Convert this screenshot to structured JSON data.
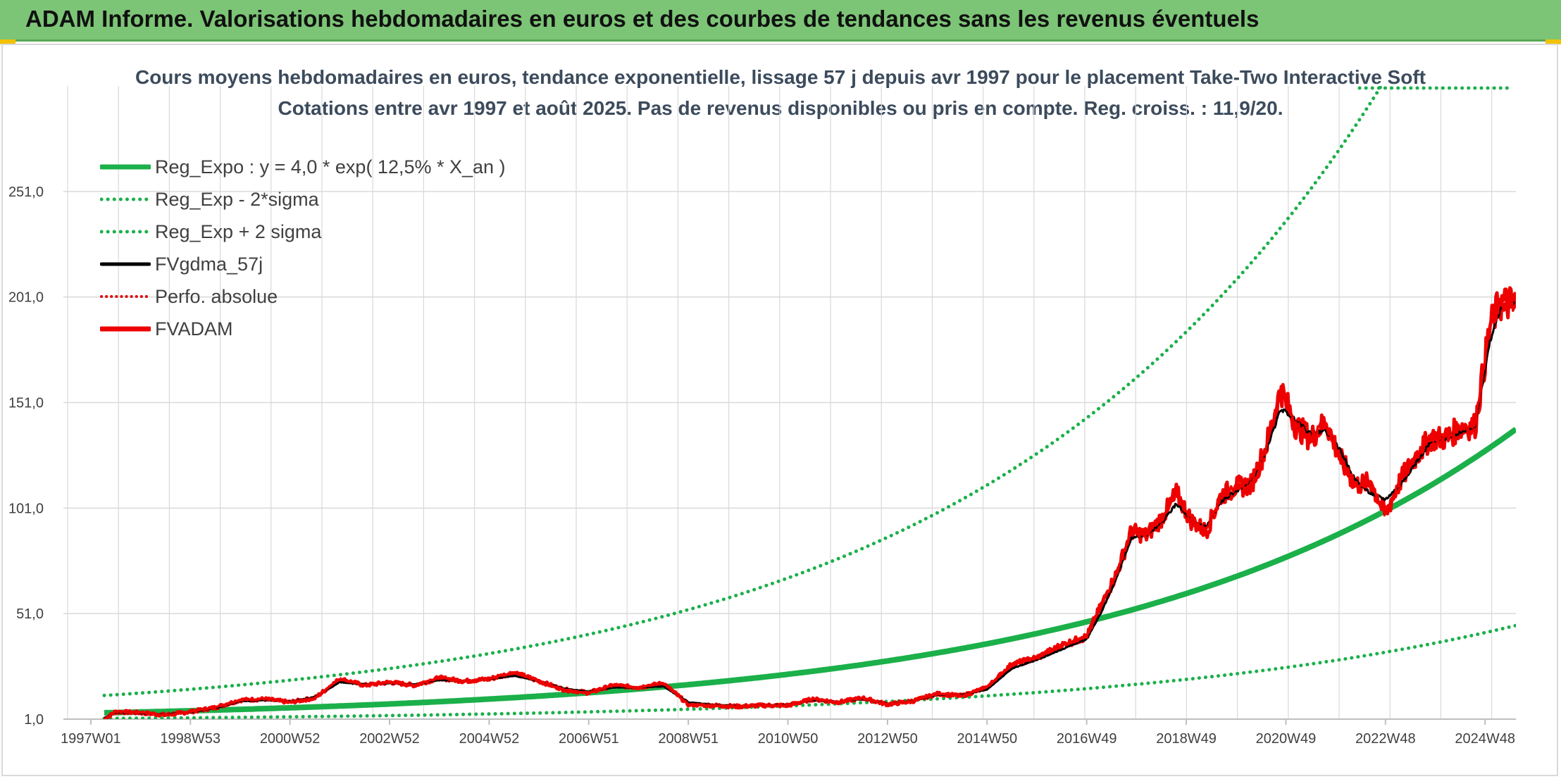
{
  "header": {
    "title": "ADAM Informe. Valorisations hebdomadaires en euros et des courbes de tendances sans les revenus éventuels"
  },
  "chart_data": {
    "type": "line",
    "title": "Cours moyens hebdomadaires en euros, tendance exponentielle, lissage 57 j depuis avr 1997 pour le placement Take-Two Interactive Soft",
    "subtitle": "Cotations entre avr 1997 et août 2025. Pas de revenus disponibles ou pris en compte. Reg. croiss. : 11,9/20.",
    "ylim": [
      1.0,
      301.0
    ],
    "xlim": [
      1997.27,
      2025.62
    ],
    "y_ticks": [
      "1,0",
      "51,0",
      "101,0",
      "151,0",
      "201,0",
      "251,0"
    ],
    "y_tick_values": [
      1,
      51,
      101,
      151,
      201,
      251
    ],
    "x_ticks": [
      "1997W01",
      "1998W53",
      "2000W52",
      "2002W52",
      "2004W52",
      "2006W51",
      "2008W51",
      "2010W50",
      "2012W50",
      "2014W50",
      "2016W49",
      "2018W49",
      "2020W49",
      "2022W48",
      "2024W48"
    ],
    "x_tick_values": [
      1997.0,
      1999.0,
      2001.0,
      2003.0,
      2005.0,
      2007.0,
      2009.0,
      2011.0,
      2013.0,
      2015.0,
      2017.0,
      2019.0,
      2021.0,
      2023.0,
      2025.0
    ],
    "regression": {
      "a": 4.0,
      "rate": 0.125,
      "x0": 1997.27,
      "sigma_factor": 3.05
    },
    "colors": {
      "reg": "#1bb04a",
      "sigma": "#1bb04a",
      "fvgdma": "#000000",
      "perfo": "#e00000",
      "fvadam": "#ee0000",
      "grid": "#d9d9d9",
      "axis": "#bfbfbf"
    },
    "legend_position": "top-left",
    "series": [
      {
        "name": "Reg_Expo : y = 4,0 * exp( 12,5% *  X_an )",
        "key": "reg",
        "style": "solid"
      },
      {
        "name": "Reg_Exp - 2*sigma",
        "key": "lower",
        "style": "dotted"
      },
      {
        "name": "Reg_Exp + 2 sigma",
        "key": "upper",
        "style": "dotted"
      },
      {
        "name": "FVgdma_57j",
        "key": "fvgdma",
        "style": "solid"
      },
      {
        "name": "Perfo. absolue",
        "key": "perfo",
        "style": "dotted"
      },
      {
        "name": "FVADAM",
        "key": "fvadam",
        "style": "solid",
        "x": [
          1997.27,
          1997.5,
          1998.0,
          1998.5,
          1999.0,
          1999.5,
          2000.0,
          2000.5,
          2001.0,
          2001.5,
          2002.0,
          2002.5,
          2003.0,
          2003.5,
          2004.0,
          2004.5,
          2005.0,
          2005.5,
          2006.0,
          2006.5,
          2007.0,
          2007.5,
          2008.0,
          2008.5,
          2009.0,
          2009.5,
          2010.0,
          2010.5,
          2011.0,
          2011.5,
          2012.0,
          2012.5,
          2013.0,
          2013.5,
          2014.0,
          2014.5,
          2015.0,
          2015.5,
          2016.0,
          2016.5,
          2017.0,
          2017.3,
          2017.6,
          2017.9,
          2018.2,
          2018.5,
          2018.8,
          2019.1,
          2019.4,
          2019.7,
          2020.0,
          2020.3,
          2020.6,
          2020.9,
          2021.2,
          2021.5,
          2021.8,
          2022.1,
          2022.4,
          2022.7,
          2023.0,
          2023.3,
          2023.6,
          2023.9,
          2024.2,
          2024.5,
          2024.8,
          2025.1,
          2025.3,
          2025.62
        ],
        "y": [
          1.0,
          4.5,
          4.0,
          3.0,
          4.5,
          6.5,
          10.0,
          10.5,
          9.0,
          11.0,
          20.0,
          17.0,
          18.5,
          17.0,
          20.5,
          19.0,
          20.0,
          23.0,
          19.0,
          15.0,
          13.5,
          17.0,
          16.0,
          18.0,
          8.0,
          7.5,
          7.0,
          7.5,
          7.5,
          10.5,
          9.0,
          11.0,
          8.0,
          9.5,
          13.0,
          12.0,
          16.0,
          27.0,
          30.0,
          36.0,
          40.0,
          55.0,
          70.0,
          90.0,
          88.0,
          96.0,
          108.0,
          95.0,
          90.0,
          107.0,
          111.0,
          112.0,
          130.0,
          157.0,
          140.0,
          134.0,
          142.0,
          124.0,
          112.0,
          113.0,
          98.0,
          114.0,
          125.0,
          134.0,
          134.0,
          139.0,
          140.0,
          187.0,
          198.0,
          198.0
        ]
      },
      {
        "name": "",
        "key": "fvgdma_trace",
        "x": [
          1997.27,
          1997.5,
          1998.0,
          1998.5,
          1999.0,
          1999.5,
          2000.0,
          2000.5,
          2001.0,
          2001.5,
          2002.0,
          2002.5,
          2003.0,
          2003.5,
          2004.0,
          2004.5,
          2005.0,
          2005.5,
          2006.0,
          2006.5,
          2007.0,
          2007.5,
          2008.0,
          2008.5,
          2009.0,
          2009.5,
          2010.0,
          2010.5,
          2011.0,
          2011.5,
          2012.0,
          2012.5,
          2013.0,
          2013.5,
          2014.0,
          2014.5,
          2015.0,
          2015.5,
          2016.0,
          2016.5,
          2017.0,
          2017.3,
          2017.6,
          2017.9,
          2018.2,
          2018.5,
          2018.8,
          2019.1,
          2019.4,
          2019.7,
          2020.0,
          2020.3,
          2020.6,
          2020.9,
          2021.2,
          2021.5,
          2021.8,
          2022.1,
          2022.4,
          2022.7,
          2023.0,
          2023.3,
          2023.6,
          2023.9,
          2024.2,
          2024.5,
          2024.8,
          2025.1,
          2025.3,
          2025.62
        ],
        "y": [
          1.5,
          4.2,
          3.8,
          3.2,
          4.3,
          6.2,
          9.5,
          10.0,
          9.3,
          11.5,
          18.5,
          17.5,
          18.0,
          17.5,
          19.5,
          19.2,
          20.0,
          21.5,
          19.0,
          15.5,
          14.0,
          16.0,
          16.0,
          16.5,
          9.0,
          7.8,
          7.2,
          7.5,
          7.8,
          10.0,
          9.2,
          10.5,
          8.3,
          9.5,
          12.5,
          12.5,
          15.0,
          25.0,
          29.0,
          34.0,
          39.0,
          52.0,
          68.0,
          87.0,
          88.0,
          94.0,
          103.0,
          95.0,
          92.0,
          104.0,
          109.0,
          113.0,
          128.0,
          148.0,
          143.0,
          136.0,
          138.0,
          128.0,
          114.0,
          108.0,
          105.0,
          112.0,
          122.0,
          132.0,
          134.0,
          137.0,
          140.0,
          180.0,
          195.0,
          198.0
        ]
      }
    ]
  }
}
